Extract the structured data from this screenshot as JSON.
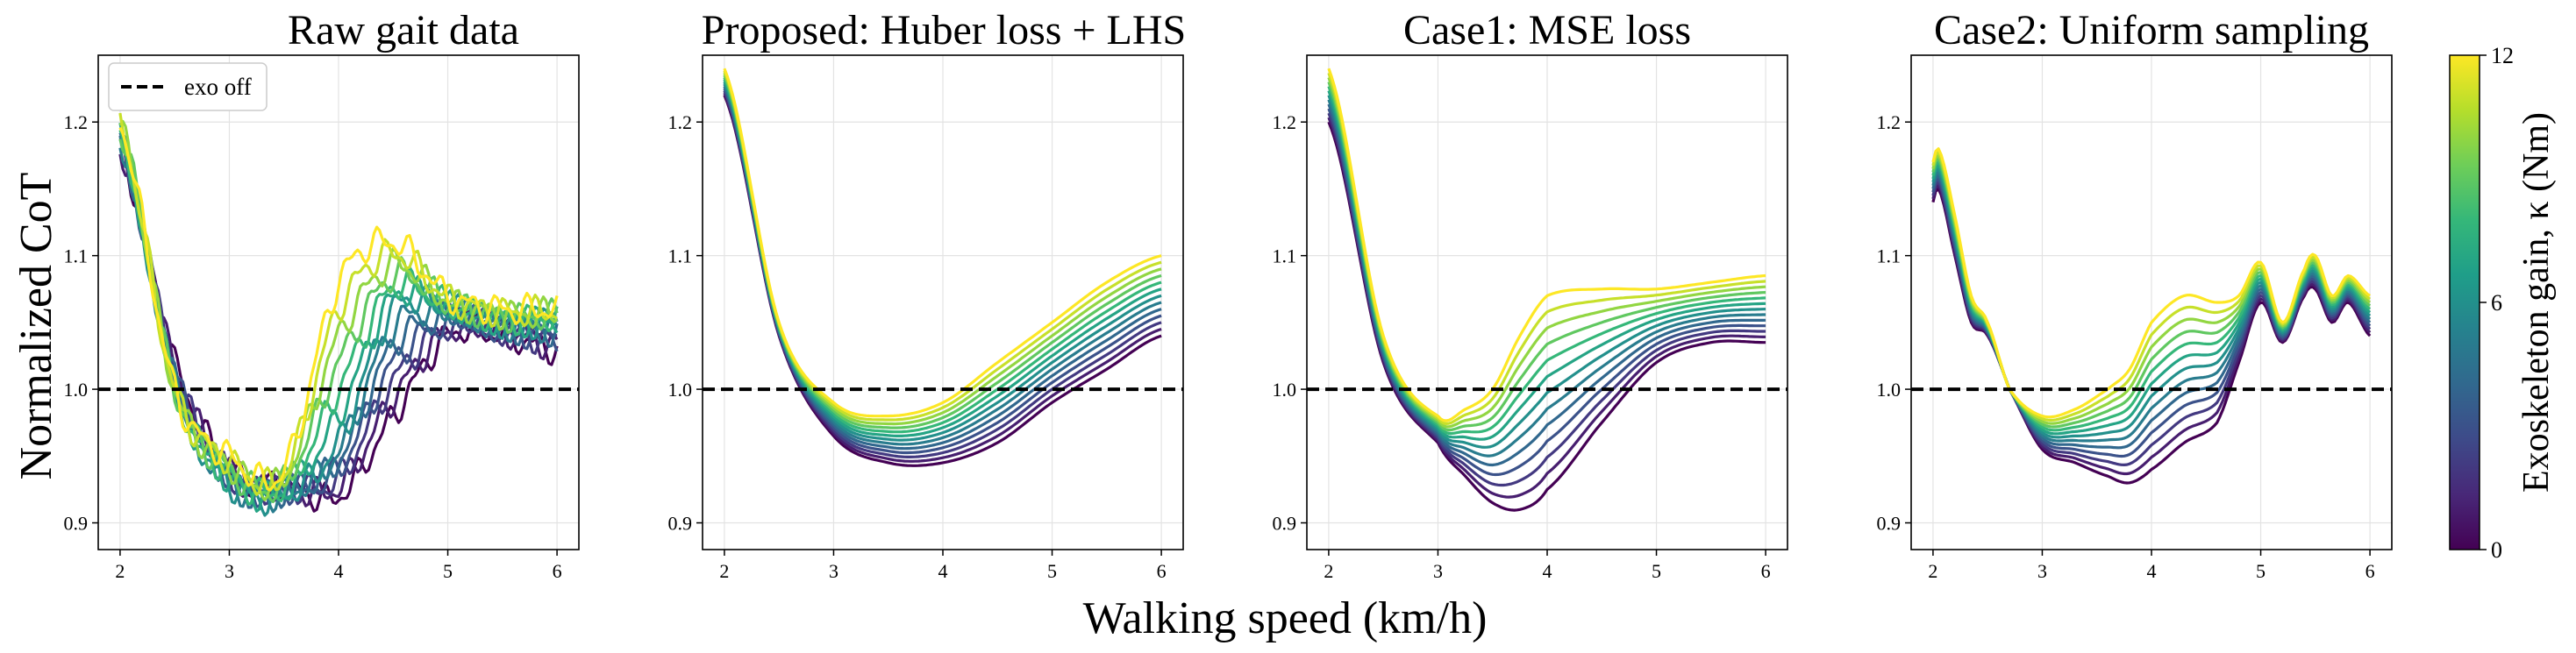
{
  "figure": {
    "shared_xlabel": "Walking speed (km/h)",
    "shared_ylabel": "Normalized CoT",
    "legend": {
      "label": "exo off",
      "placement": "upper-left of first panel"
    },
    "colorbar": {
      "label": "Exoskeleton gain, κ (Nm)",
      "ticks": [
        "0",
        "6",
        "12"
      ],
      "range": [
        0,
        12
      ],
      "colormap": "viridis",
      "stops": [
        "#440154",
        "#482878",
        "#3e4a89",
        "#31688e",
        "#26828e",
        "#1f9e89",
        "#35b779",
        "#6ece58",
        "#b5de2b",
        "#fde725"
      ]
    }
  },
  "chart_data": [
    {
      "type": "line",
      "title": "Raw gait data",
      "xlim": [
        1.8,
        6.2
      ],
      "ylim": [
        0.88,
        1.25
      ],
      "xticks": [
        2,
        3,
        4,
        5,
        6
      ],
      "yticks": [
        0.9,
        1.0,
        1.1,
        1.2
      ],
      "grid": true,
      "reference_line": {
        "y": 1.0,
        "style": "dashed",
        "color": "#000000"
      },
      "gain_levels": 12,
      "speed": [
        2.0,
        2.5,
        3.0,
        3.5,
        4.0,
        4.5,
        5.0,
        5.5,
        6.0
      ],
      "series_endpoints": [
        {
          "gain": 0,
          "values": [
            1.18,
            1.02,
            0.94,
            0.93,
            0.92,
            0.98,
            1.04,
            1.04,
            1.03
          ]
        },
        {
          "gain": 6,
          "values": [
            1.19,
            1.0,
            0.93,
            0.92,
            0.96,
            1.06,
            1.06,
            1.05,
            1.05
          ]
        },
        {
          "gain": 12,
          "values": [
            1.2,
            1.0,
            0.95,
            0.94,
            1.08,
            1.11,
            1.07,
            1.06,
            1.06
          ]
        }
      ]
    },
    {
      "type": "line",
      "title": "Proposed: Huber loss + LHS",
      "xlim": [
        1.8,
        6.2
      ],
      "ylim": [
        0.88,
        1.25
      ],
      "xticks": [
        2,
        3,
        4,
        5,
        6
      ],
      "yticks": [
        0.9,
        1.0,
        1.1,
        1.2
      ],
      "grid": true,
      "reference_line": {
        "y": 1.0,
        "style": "dashed",
        "color": "#000000"
      },
      "gain_levels": 12,
      "speed": [
        2.0,
        2.5,
        3.0,
        3.5,
        4.0,
        4.5,
        5.0,
        5.5,
        6.0
      ],
      "series_endpoints": [
        {
          "gain": 0,
          "values": [
            1.22,
            1.04,
            0.965,
            0.945,
            0.945,
            0.96,
            0.99,
            1.015,
            1.04
          ]
        },
        {
          "gain": 12,
          "values": [
            1.24,
            1.05,
            0.99,
            0.98,
            0.99,
            1.02,
            1.05,
            1.08,
            1.1
          ]
        }
      ]
    },
    {
      "type": "line",
      "title": "Case1: MSE loss",
      "xlim": [
        1.8,
        6.2
      ],
      "ylim": [
        0.88,
        1.25
      ],
      "xticks": [
        2,
        3,
        4,
        5,
        6
      ],
      "yticks": [
        0.9,
        1.0,
        1.1,
        1.2
      ],
      "grid": true,
      "reference_line": {
        "y": 1.0,
        "style": "dashed",
        "color": "#000000"
      },
      "gain_levels": 12,
      "speed": [
        2.0,
        2.5,
        3.0,
        3.25,
        3.5,
        3.75,
        4.0,
        4.5,
        5.0,
        5.5,
        6.0
      ],
      "series_endpoints": [
        {
          "gain": 0,
          "values": [
            1.2,
            1.02,
            0.96,
            0.935,
            0.915,
            0.91,
            0.925,
            0.975,
            1.02,
            1.035,
            1.035
          ]
        },
        {
          "gain": 12,
          "values": [
            1.24,
            1.04,
            0.98,
            0.985,
            1.0,
            1.04,
            1.07,
            1.075,
            1.075,
            1.08,
            1.085
          ]
        }
      ]
    },
    {
      "type": "line",
      "title": "Case2: Uniform sampling",
      "xlim": [
        1.8,
        6.2
      ],
      "ylim": [
        0.88,
        1.25
      ],
      "xticks": [
        2,
        3,
        4,
        5,
        6
      ],
      "yticks": [
        0.9,
        1.0,
        1.1,
        1.2
      ],
      "grid": true,
      "reference_line": {
        "y": 1.0,
        "style": "dashed",
        "color": "#000000"
      },
      "gain_levels": 12,
      "speed": [
        2.0,
        2.05,
        2.2,
        2.35,
        2.5,
        2.7,
        3.0,
        3.3,
        3.6,
        3.8,
        4.0,
        4.3,
        4.6,
        4.8,
        5.0,
        5.2,
        5.4,
        5.5,
        5.65,
        5.8,
        6.0
      ],
      "series_endpoints": [
        {
          "gain": 0,
          "values": [
            1.14,
            1.15,
            1.1,
            1.05,
            1.04,
            1.0,
            0.955,
            0.945,
            0.935,
            0.93,
            0.94,
            0.96,
            0.975,
            1.02,
            1.065,
            1.035,
            1.07,
            1.075,
            1.05,
            1.065,
            1.04
          ]
        },
        {
          "gain": 12,
          "values": [
            1.17,
            1.18,
            1.13,
            1.07,
            1.05,
            1.0,
            0.98,
            0.985,
            1.0,
            1.015,
            1.05,
            1.07,
            1.065,
            1.07,
            1.095,
            1.05,
            1.09,
            1.1,
            1.07,
            1.085,
            1.07
          ]
        }
      ]
    }
  ]
}
